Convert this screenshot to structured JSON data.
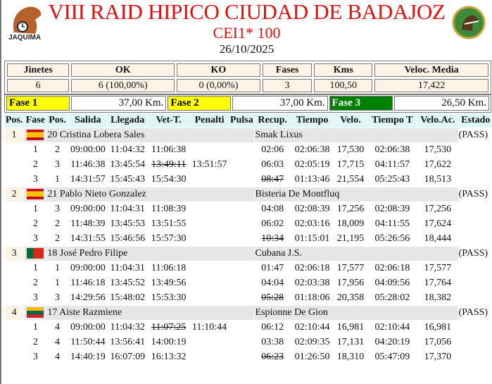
{
  "header": {
    "title": "VIII RAID HIPICO CIUDAD DE BADAJOZ",
    "subtitle": "CEI1* 100",
    "date": "26/10/2025",
    "logo_left_text": "JAQUIMA"
  },
  "stats": {
    "headers": [
      "Jinetes",
      "OK",
      "KO",
      "Fases",
      "Kms",
      "Veloc. Media"
    ],
    "values": [
      "6",
      "6 (100,00%)",
      "0 (0,00%)",
      "3",
      "100,50",
      "17,422"
    ]
  },
  "fases": [
    {
      "label": "Fase 1",
      "km": "37,00 Km.",
      "color": "#ffff00",
      "text_color": "#000000"
    },
    {
      "label": "Fase 2",
      "km": "37,00 Km.",
      "color": "#ffff00",
      "text_color": "#000000"
    },
    {
      "label": "Fase 3",
      "km": "26,50 Km.",
      "color": "#008000",
      "text_color": "#ffffff"
    }
  ],
  "columns": [
    "Pos.",
    "Fase",
    "Pos.",
    "Salida",
    "Llegada",
    "Vet-T.",
    "Penalti",
    "Pulsa",
    "Recup.",
    "Tiempo",
    "Velo.",
    "Tiempo T",
    "Velo.Ac.",
    "Estado"
  ],
  "riders": [
    {
      "pos": "1",
      "flag": "spain",
      "rider": "20 Cristina Lobera Sales",
      "horse": "Smak Lixus",
      "status": "(PASS)",
      "phases": [
        {
          "fase": "1",
          "pos": "2",
          "salida": "09:00:00",
          "llegada": "11:04:32",
          "vet": "11:06:38",
          "vet_struck": false,
          "penalti": "",
          "recup": "02:06",
          "recup_struck": false,
          "tiempo": "02:06:38",
          "velo": "17,530",
          "tiempo_t": "02:06:38",
          "velo_ac": "17,530"
        },
        {
          "fase": "2",
          "pos": "3",
          "salida": "11:46:38",
          "llegada": "13:45:54",
          "vet": "13:49:11",
          "vet_struck": true,
          "penalti": "13:51:57",
          "recup": "06:03",
          "recup_struck": false,
          "tiempo": "02:05:19",
          "velo": "17,715",
          "tiempo_t": "04:11:57",
          "velo_ac": "17,622"
        },
        {
          "fase": "3",
          "pos": "1",
          "salida": "14:31:57",
          "llegada": "15:45:43",
          "vet": "15:54:30",
          "vet_struck": false,
          "penalti": "",
          "recup": "08:47",
          "recup_struck": true,
          "tiempo": "01:13:46",
          "velo": "21,554",
          "tiempo_t": "05:25:43",
          "velo_ac": "18,513"
        }
      ]
    },
    {
      "pos": "2",
      "flag": "spain",
      "rider": "21 Pablo Nieto Gonzalez",
      "horse": "Bisteria De Montfluq",
      "status": "(PASS)",
      "phases": [
        {
          "fase": "1",
          "pos": "3",
          "salida": "09:00:00",
          "llegada": "11:04:31",
          "vet": "11:08:39",
          "vet_struck": false,
          "penalti": "",
          "recup": "04:08",
          "recup_struck": false,
          "tiempo": "02:08:39",
          "velo": "17,256",
          "tiempo_t": "02:08:39",
          "velo_ac": "17,256"
        },
        {
          "fase": "2",
          "pos": "2",
          "salida": "11:48:39",
          "llegada": "13:45:53",
          "vet": "13:51:55",
          "vet_struck": false,
          "penalti": "",
          "recup": "06:02",
          "recup_struck": false,
          "tiempo": "02:03:16",
          "velo": "18,009",
          "tiempo_t": "04:11:55",
          "velo_ac": "17,624"
        },
        {
          "fase": "3",
          "pos": "2",
          "salida": "14:31:55",
          "llegada": "15:46:56",
          "vet": "15:57:30",
          "vet_struck": false,
          "penalti": "",
          "recup": "10:34",
          "recup_struck": true,
          "tiempo": "01:15:01",
          "velo": "21,195",
          "tiempo_t": "05:26:56",
          "velo_ac": "18,444"
        }
      ]
    },
    {
      "pos": "3",
      "flag": "portugal",
      "rider": "18 José Pedro Filipe",
      "horse": "Cubana J.S.",
      "status": "(PASS)",
      "phases": [
        {
          "fase": "1",
          "pos": "1",
          "salida": "09:00:00",
          "llegada": "11:04:31",
          "vet": "11:06:18",
          "vet_struck": false,
          "penalti": "",
          "recup": "01:47",
          "recup_struck": false,
          "tiempo": "02:06:18",
          "velo": "17,577",
          "tiempo_t": "02:06:18",
          "velo_ac": "17,577"
        },
        {
          "fase": "2",
          "pos": "1",
          "salida": "11:46:18",
          "llegada": "13:45:52",
          "vet": "13:49:56",
          "vet_struck": false,
          "penalti": "",
          "recup": "04:04",
          "recup_struck": false,
          "tiempo": "02:03:38",
          "velo": "17,956",
          "tiempo_t": "04:09:56",
          "velo_ac": "17,764"
        },
        {
          "fase": "3",
          "pos": "3",
          "salida": "14:29:56",
          "llegada": "15:48:02",
          "vet": "15:53:30",
          "vet_struck": false,
          "penalti": "",
          "recup": "05:28",
          "recup_struck": true,
          "tiempo": "01:18:06",
          "velo": "20,358",
          "tiempo_t": "05:28:02",
          "velo_ac": "18,382"
        }
      ]
    },
    {
      "pos": "4",
      "flag": "lithuania",
      "rider": "17 Aiste Razmiene",
      "horse": "Espionne De Gion",
      "status": "(PASS)",
      "phases": [
        {
          "fase": "1",
          "pos": "4",
          "salida": "09:00:00",
          "llegada": "11:04:32",
          "vet": "11:07:25",
          "vet_struck": true,
          "penalti": "11:10:44",
          "recup": "06:12",
          "recup_struck": false,
          "tiempo": "02:10:44",
          "velo": "16,981",
          "tiempo_t": "02:10:44",
          "velo_ac": "16,981"
        },
        {
          "fase": "2",
          "pos": "4",
          "salida": "11:50:44",
          "llegada": "13:56:41",
          "vet": "14:00:19",
          "vet_struck": false,
          "penalti": "",
          "recup": "03:38",
          "recup_struck": false,
          "tiempo": "02:09:35",
          "velo": "17,131",
          "tiempo_t": "04:20:19",
          "velo_ac": "17,056"
        },
        {
          "fase": "3",
          "pos": "4",
          "salida": "14:40:19",
          "llegada": "16:07:09",
          "vet": "16:13:32",
          "vet_struck": false,
          "penalti": "",
          "recup": "06:23",
          "recup_struck": true,
          "tiempo": "01:26:50",
          "velo": "18,310",
          "tiempo_t": "05:47:09",
          "velo_ac": "17,370"
        }
      ]
    }
  ]
}
